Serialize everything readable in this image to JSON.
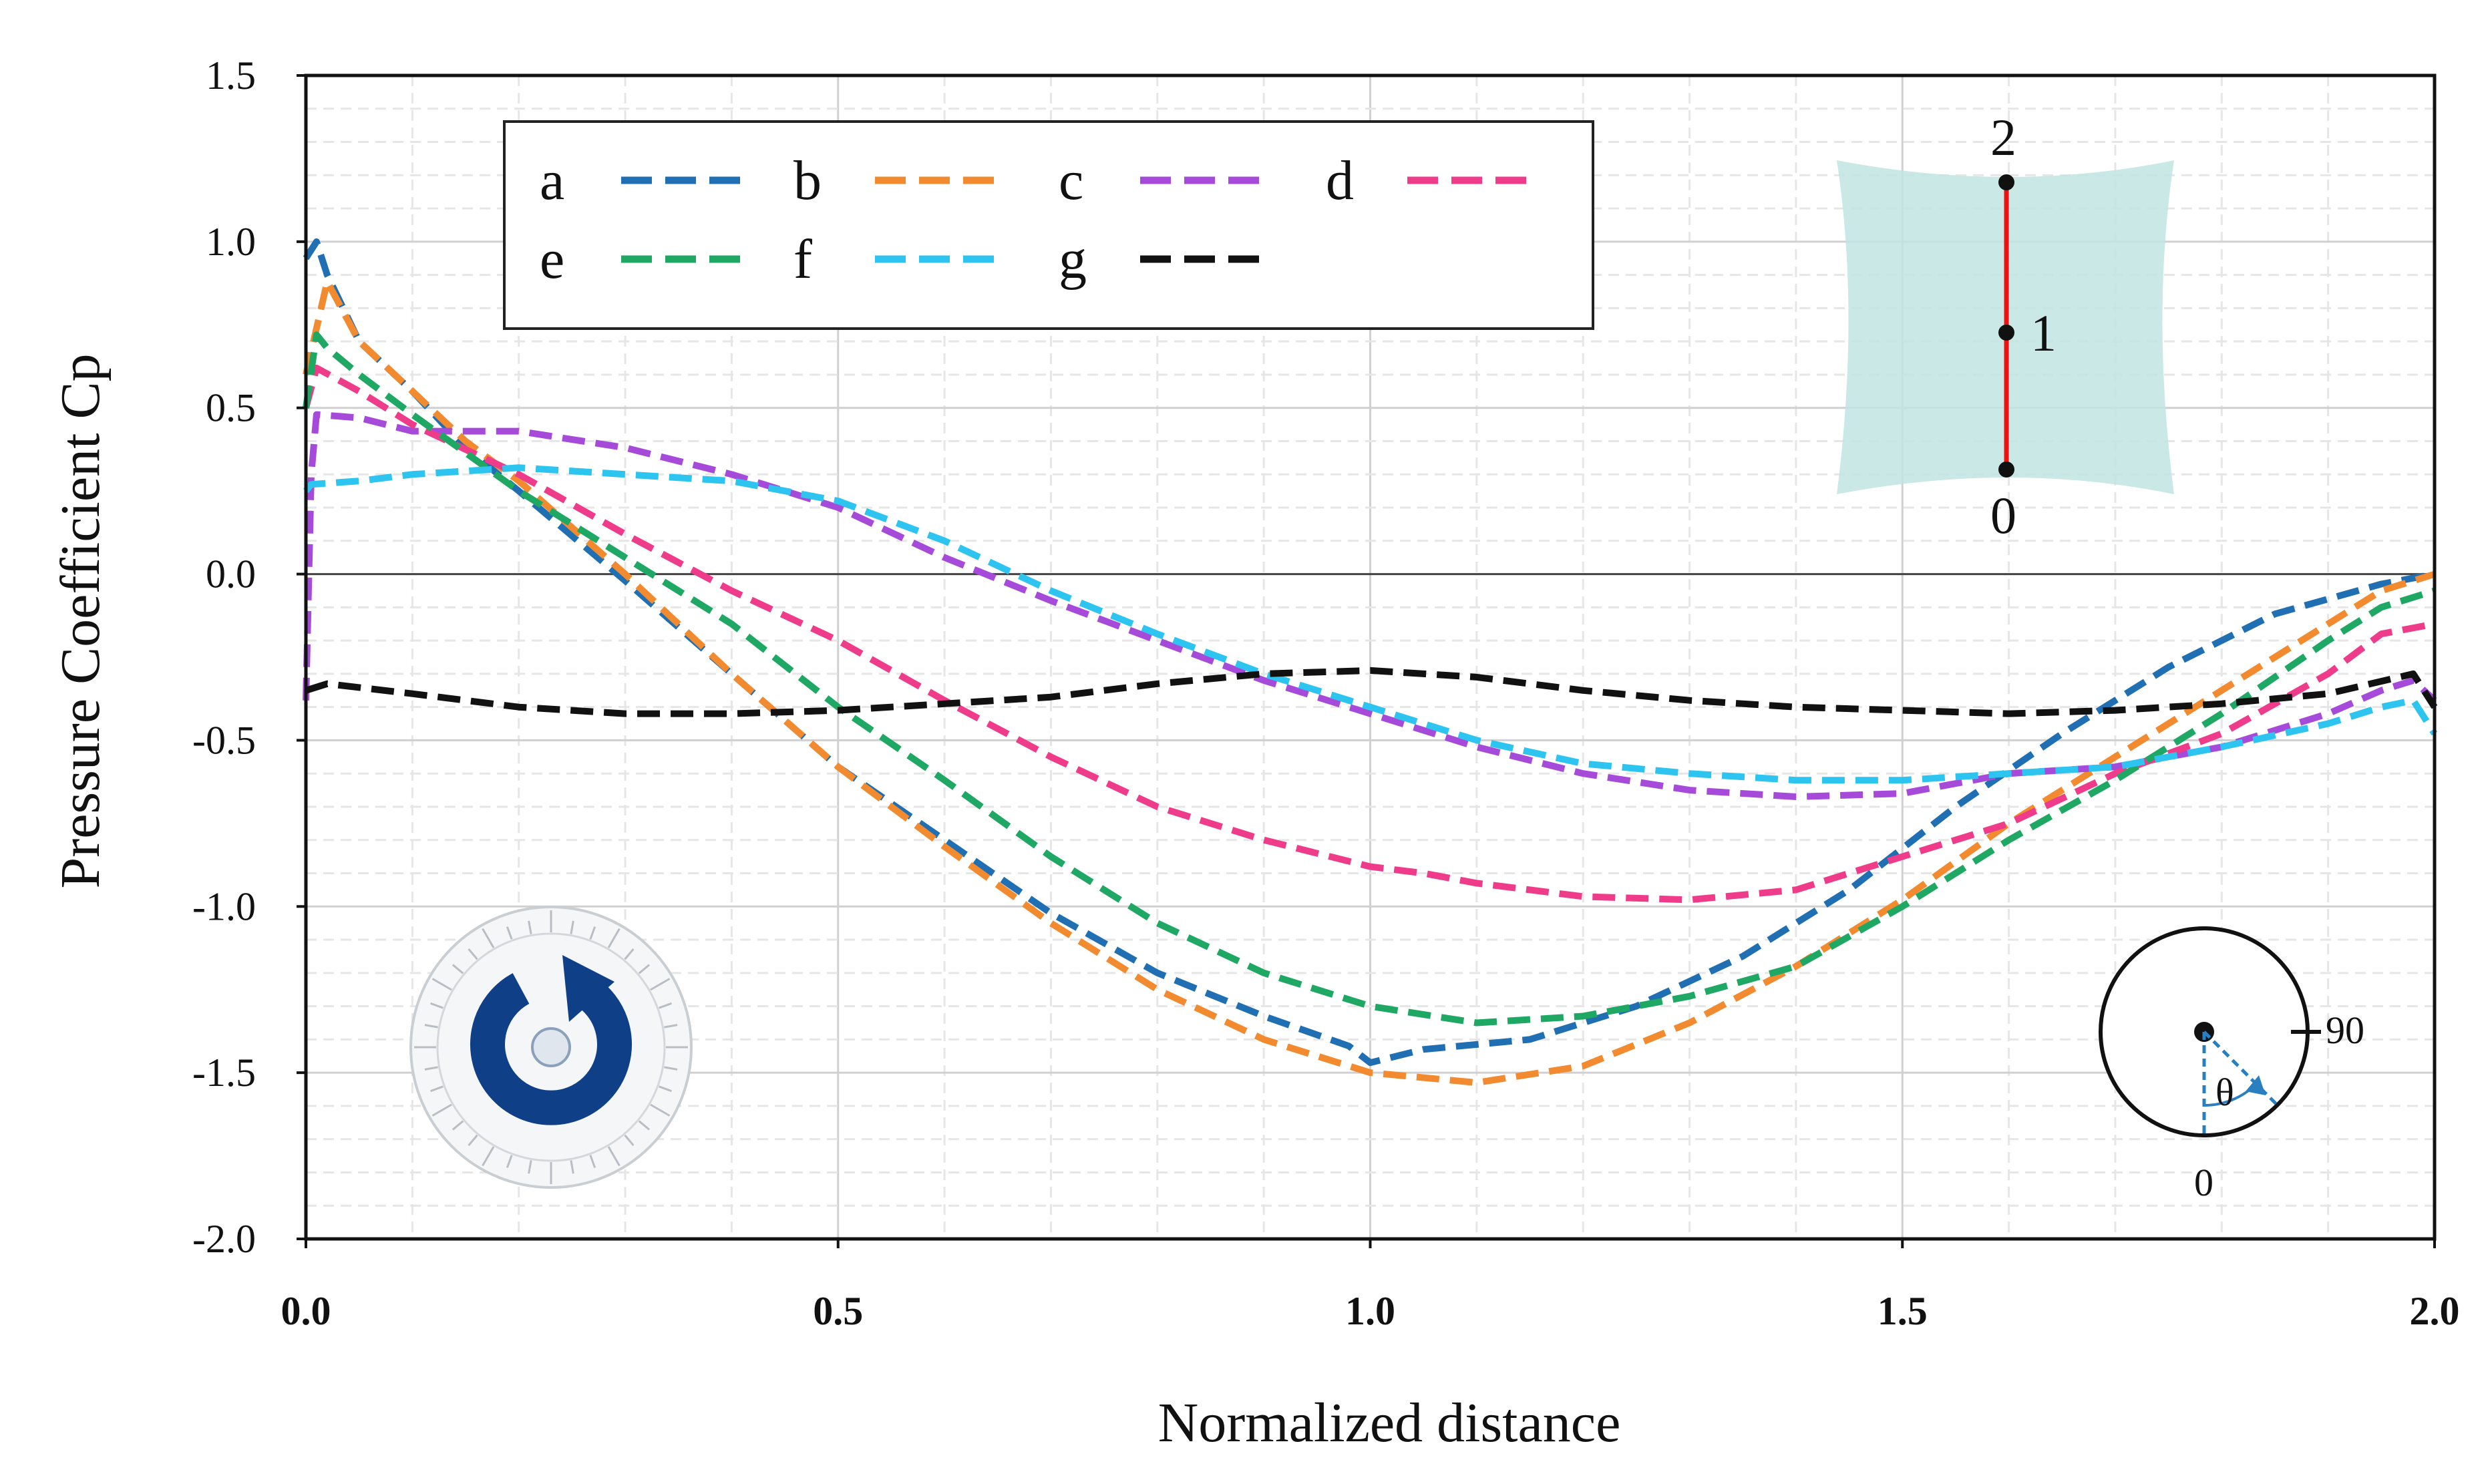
{
  "chart_data": {
    "type": "line",
    "title": "",
    "xlabel": "Normalized distance",
    "ylabel": "Pressure Coefficient Cp",
    "xlim": [
      0,
      2
    ],
    "ylim": [
      -2,
      1.5
    ],
    "x_ticks": [
      "0.0",
      "0.5",
      "1.0",
      "1.5",
      "2.0"
    ],
    "y_ticks": [
      "1.5",
      "1.0",
      "0.5",
      "0.0",
      "-0.5",
      "-1.0",
      "-1.5",
      "-2.0"
    ],
    "grid": true,
    "legend_position": "top-left",
    "series": [
      {
        "name": "a",
        "color": "#1f6fb2",
        "x": [
          0,
          0.01,
          0.02,
          0.05,
          0.1,
          0.15,
          0.2,
          0.3,
          0.4,
          0.5,
          0.6,
          0.7,
          0.8,
          0.9,
          0.98,
          1.0,
          1.05,
          1.15,
          1.25,
          1.35,
          1.45,
          1.55,
          1.65,
          1.75,
          1.85,
          1.95,
          2.0
        ],
        "y": [
          0.95,
          1.0,
          0.9,
          0.7,
          0.55,
          0.38,
          0.25,
          -0.02,
          -0.3,
          -0.58,
          -0.8,
          -1.02,
          -1.2,
          -1.33,
          -1.42,
          -1.47,
          -1.43,
          -1.4,
          -1.3,
          -1.15,
          -0.95,
          -0.7,
          -0.48,
          -0.28,
          -0.12,
          -0.03,
          0.0
        ]
      },
      {
        "name": "b",
        "color": "#f28b30",
        "x": [
          0,
          0.02,
          0.05,
          0.1,
          0.15,
          0.2,
          0.3,
          0.4,
          0.5,
          0.6,
          0.7,
          0.8,
          0.9,
          1.0,
          1.1,
          1.2,
          1.3,
          1.4,
          1.5,
          1.6,
          1.7,
          1.8,
          1.9,
          1.95,
          2.0
        ],
        "y": [
          0.6,
          0.88,
          0.7,
          0.55,
          0.4,
          0.28,
          0.0,
          -0.3,
          -0.58,
          -0.82,
          -1.05,
          -1.25,
          -1.4,
          -1.5,
          -1.53,
          -1.48,
          -1.35,
          -1.18,
          -0.98,
          -0.75,
          -0.55,
          -0.35,
          -0.15,
          -0.05,
          0.0
        ]
      },
      {
        "name": "c",
        "color": "#a64ad9",
        "x": [
          0,
          0.005,
          0.01,
          0.05,
          0.1,
          0.2,
          0.3,
          0.4,
          0.5,
          0.6,
          0.7,
          0.8,
          0.9,
          1.0,
          1.1,
          1.2,
          1.3,
          1.4,
          1.5,
          1.6,
          1.7,
          1.8,
          1.9,
          1.95,
          1.98,
          2.0
        ],
        "y": [
          -0.38,
          0.3,
          0.48,
          0.47,
          0.43,
          0.43,
          0.38,
          0.3,
          0.2,
          0.05,
          -0.08,
          -0.2,
          -0.32,
          -0.42,
          -0.52,
          -0.6,
          -0.65,
          -0.67,
          -0.66,
          -0.6,
          -0.58,
          -0.52,
          -0.42,
          -0.35,
          -0.32,
          -0.38
        ]
      },
      {
        "name": "d",
        "color": "#ee3c8b",
        "x": [
          0,
          0.01,
          0.05,
          0.1,
          0.2,
          0.3,
          0.4,
          0.5,
          0.6,
          0.7,
          0.8,
          0.9,
          1.0,
          1.05,
          1.1,
          1.2,
          1.3,
          1.4,
          1.5,
          1.6,
          1.7,
          1.8,
          1.9,
          1.95,
          2.0
        ],
        "y": [
          0.5,
          0.62,
          0.55,
          0.45,
          0.3,
          0.12,
          -0.05,
          -0.2,
          -0.38,
          -0.55,
          -0.7,
          -0.8,
          -0.88,
          -0.9,
          -0.93,
          -0.97,
          -0.98,
          -0.95,
          -0.85,
          -0.75,
          -0.6,
          -0.48,
          -0.3,
          -0.18,
          -0.15
        ]
      },
      {
        "name": "e",
        "color": "#1fa864",
        "x": [
          0,
          0.01,
          0.02,
          0.05,
          0.1,
          0.2,
          0.3,
          0.4,
          0.5,
          0.6,
          0.7,
          0.8,
          0.9,
          1.0,
          1.1,
          1.2,
          1.3,
          1.4,
          1.5,
          1.6,
          1.7,
          1.8,
          1.9,
          1.95,
          2.0
        ],
        "y": [
          0.5,
          0.72,
          0.68,
          0.6,
          0.48,
          0.25,
          0.05,
          -0.15,
          -0.4,
          -0.62,
          -0.85,
          -1.05,
          -1.2,
          -1.3,
          -1.35,
          -1.33,
          -1.27,
          -1.18,
          -1.0,
          -0.8,
          -0.62,
          -0.42,
          -0.2,
          -0.1,
          -0.05
        ]
      },
      {
        "name": "f",
        "color": "#2ec4f0",
        "x": [
          0,
          0.005,
          0.05,
          0.1,
          0.2,
          0.3,
          0.4,
          0.5,
          0.6,
          0.7,
          0.8,
          0.9,
          1.0,
          1.1,
          1.2,
          1.3,
          1.4,
          1.5,
          1.6,
          1.7,
          1.8,
          1.9,
          1.95,
          1.98,
          2.0
        ],
        "y": [
          0.25,
          0.27,
          0.28,
          0.3,
          0.32,
          0.3,
          0.28,
          0.22,
          0.1,
          -0.05,
          -0.18,
          -0.3,
          -0.4,
          -0.5,
          -0.57,
          -0.6,
          -0.62,
          -0.62,
          -0.6,
          -0.58,
          -0.52,
          -0.45,
          -0.4,
          -0.38,
          -0.48
        ]
      },
      {
        "name": "g",
        "color": "#111111",
        "x": [
          0,
          0.02,
          0.1,
          0.2,
          0.3,
          0.4,
          0.5,
          0.6,
          0.7,
          0.8,
          0.9,
          1.0,
          1.1,
          1.2,
          1.3,
          1.4,
          1.5,
          1.6,
          1.7,
          1.8,
          1.9,
          1.98,
          2.0
        ],
        "y": [
          -0.35,
          -0.33,
          -0.36,
          -0.4,
          -0.42,
          -0.42,
          -0.41,
          -0.39,
          -0.37,
          -0.33,
          -0.3,
          -0.29,
          -0.31,
          -0.35,
          -0.38,
          -0.4,
          -0.41,
          -0.42,
          -0.41,
          -0.39,
          -0.36,
          -0.3,
          -0.4
        ]
      }
    ]
  },
  "insets": {
    "panel_labels": [
      "2",
      "1",
      "0"
    ],
    "angle_labels": [
      "90",
      "0",
      "θ"
    ]
  }
}
